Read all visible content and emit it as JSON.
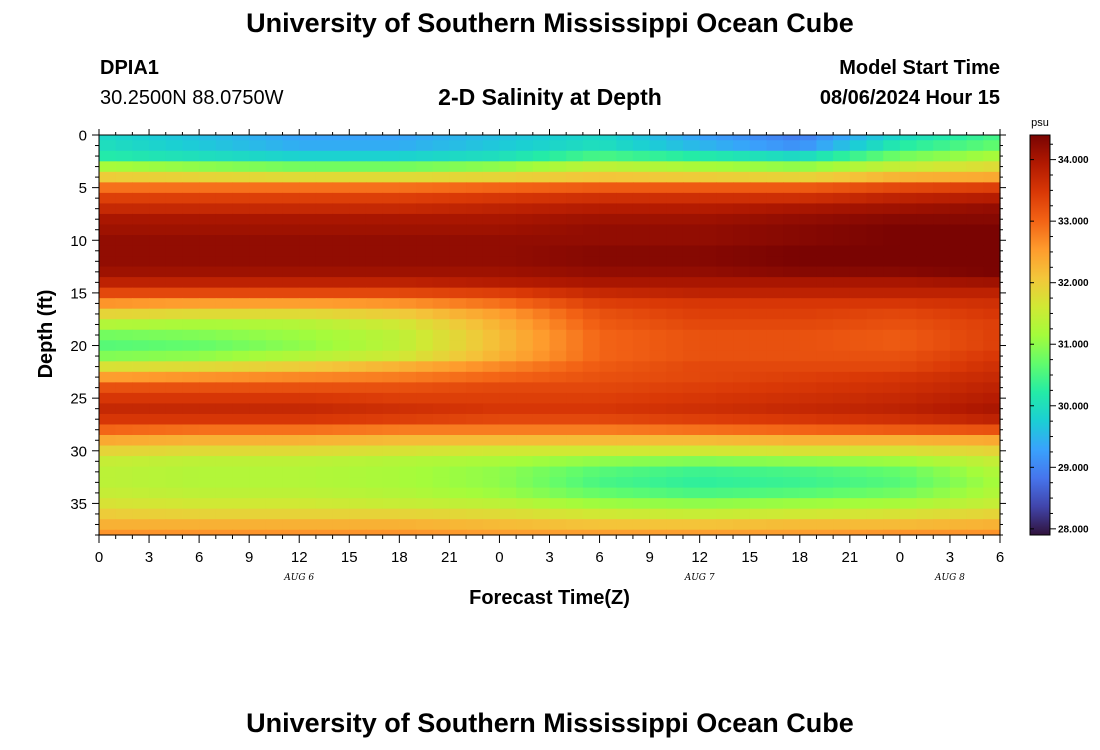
{
  "header": {
    "title": "University of Southern Mississippi Ocean Cube",
    "station": "DPIA1",
    "coords": "30.2500N  88.0750W",
    "subtitle": "2-D Salinity at Depth",
    "model_start_label": "Model Start Time",
    "model_start_value": "08/06/2024 Hour 15"
  },
  "footer": {
    "title": "University of Southern Mississippi Ocean Cube"
  },
  "chart_data": {
    "type": "heatmap",
    "title": "2-D Salinity at Depth",
    "xlabel": "Forecast Time(Z)",
    "ylabel": "Depth (ft)",
    "x_tick_labels": [
      "0",
      "3",
      "6",
      "9",
      "12",
      "15",
      "18",
      "21",
      "0",
      "3",
      "6",
      "9",
      "12",
      "15",
      "18",
      "21",
      "0",
      "3",
      "6"
    ],
    "x_hours": [
      0,
      54
    ],
    "date_labels": [
      {
        "label": "AUG 6",
        "hour": 12
      },
      {
        "label": "AUG 7",
        "hour": 36
      },
      {
        "label": "AUG 8",
        "hour": 51
      }
    ],
    "y_ticks": [
      0,
      5,
      10,
      15,
      20,
      25,
      30,
      35
    ],
    "y_tick_labels": [
      "0",
      "5",
      "10",
      "15",
      "20",
      "25",
      "30",
      "35"
    ],
    "ylim": [
      0,
      38
    ],
    "y_reversed": true,
    "colorbar": {
      "unit": "psu",
      "range": [
        27.9,
        34.4
      ],
      "ticks": [
        28,
        29,
        30,
        31,
        32,
        33,
        34
      ],
      "tick_labels": [
        "28.000",
        "29.000",
        "30.000",
        "31.000",
        "32.000",
        "33.000",
        "34.000"
      ]
    },
    "colormap": [
      "#30123b",
      "#4145ab",
      "#4675ed",
      "#39a2fc",
      "#1bcfd4",
      "#24eca6",
      "#61fc6c",
      "#a4fc3b",
      "#d1e834",
      "#f3c63a",
      "#fe9b2d",
      "#f36315",
      "#d93806",
      "#b11901",
      "#7a0402"
    ],
    "depth_ft": [
      0,
      1,
      2,
      3,
      4,
      5,
      6,
      7,
      8,
      9,
      10,
      11,
      12,
      13,
      14,
      15,
      16,
      17,
      18,
      19,
      20,
      21,
      22,
      23,
      24,
      25,
      26,
      27,
      28,
      29,
      30,
      31,
      32,
      33,
      34,
      35,
      36,
      37,
      38
    ],
    "time_hours": [
      0,
      6,
      12,
      18,
      24,
      30,
      36,
      42,
      48,
      54
    ],
    "salinity_psu": [
      [
        29.9,
        29.6,
        29.3,
        29.3,
        29.6,
        29.9,
        29.3,
        28.9,
        29.9,
        30.5
      ],
      [
        30.0,
        29.7,
        29.4,
        29.4,
        29.7,
        30.0,
        29.5,
        29.1,
        30.2,
        30.7
      ],
      [
        30.2,
        30.0,
        29.8,
        29.8,
        30.0,
        30.5,
        30.2,
        29.9,
        30.8,
        31.2
      ],
      [
        31.2,
        31.0,
        30.8,
        30.8,
        31.0,
        31.4,
        31.2,
        31.0,
        31.5,
        31.8
      ],
      [
        32.0,
        31.9,
        31.8,
        31.8,
        31.9,
        32.1,
        32.0,
        31.9,
        32.3,
        32.4
      ],
      [
        32.9,
        32.9,
        32.9,
        32.9,
        33.0,
        33.1,
        33.1,
        33.1,
        33.3,
        33.4
      ],
      [
        33.4,
        33.4,
        33.4,
        33.4,
        33.5,
        33.6,
        33.6,
        33.6,
        33.8,
        33.9
      ],
      [
        33.7,
        33.7,
        33.7,
        33.7,
        33.8,
        33.9,
        33.9,
        34.0,
        34.1,
        34.2
      ],
      [
        34.0,
        34.0,
        34.0,
        34.0,
        34.0,
        34.1,
        34.1,
        34.2,
        34.3,
        34.3
      ],
      [
        34.1,
        34.1,
        34.1,
        34.1,
        34.1,
        34.2,
        34.2,
        34.3,
        34.4,
        34.4
      ],
      [
        34.2,
        34.2,
        34.2,
        34.2,
        34.2,
        34.2,
        34.2,
        34.3,
        34.4,
        34.5
      ],
      [
        34.2,
        34.2,
        34.2,
        34.2,
        34.2,
        34.3,
        34.3,
        34.4,
        34.5,
        34.6
      ],
      [
        34.2,
        34.2,
        34.2,
        34.2,
        34.2,
        34.3,
        34.3,
        34.4,
        34.5,
        34.6
      ],
      [
        34.1,
        34.1,
        34.1,
        34.1,
        34.1,
        34.2,
        34.2,
        34.3,
        34.3,
        34.4
      ],
      [
        33.8,
        33.8,
        33.8,
        33.8,
        33.9,
        34.0,
        34.0,
        34.0,
        34.0,
        34.1
      ],
      [
        33.3,
        33.3,
        33.3,
        33.3,
        33.4,
        33.7,
        33.8,
        33.8,
        33.8,
        33.8
      ],
      [
        32.6,
        32.5,
        32.5,
        32.6,
        32.9,
        33.4,
        33.5,
        33.5,
        33.5,
        33.6
      ],
      [
        31.9,
        31.8,
        31.8,
        32.0,
        32.5,
        33.2,
        33.4,
        33.4,
        33.3,
        33.5
      ],
      [
        31.3,
        31.2,
        31.3,
        31.6,
        32.3,
        33.1,
        33.3,
        33.3,
        33.2,
        33.4
      ],
      [
        30.8,
        30.9,
        31.1,
        31.4,
        32.2,
        33.0,
        33.2,
        33.2,
        33.1,
        33.4
      ],
      [
        30.6,
        30.7,
        31.0,
        31.4,
        32.2,
        33.0,
        33.2,
        33.2,
        33.1,
        33.4
      ],
      [
        30.9,
        31.0,
        31.3,
        31.6,
        32.3,
        33.0,
        33.2,
        33.2,
        33.2,
        33.5
      ],
      [
        31.7,
        31.8,
        32.0,
        32.3,
        32.7,
        33.1,
        33.3,
        33.3,
        33.3,
        33.6
      ],
      [
        32.5,
        32.6,
        32.7,
        32.8,
        33.0,
        33.2,
        33.3,
        33.4,
        33.5,
        33.7
      ],
      [
        33.2,
        33.2,
        33.2,
        33.2,
        33.3,
        33.3,
        33.4,
        33.5,
        33.6,
        33.8
      ],
      [
        33.5,
        33.5,
        33.5,
        33.4,
        33.4,
        33.4,
        33.5,
        33.6,
        33.7,
        33.9
      ],
      [
        33.7,
        33.7,
        33.7,
        33.6,
        33.5,
        33.5,
        33.6,
        33.7,
        33.8,
        34.0
      ],
      [
        33.5,
        33.5,
        33.5,
        33.4,
        33.3,
        33.3,
        33.4,
        33.5,
        33.6,
        33.8
      ],
      [
        33.0,
        32.9,
        32.9,
        32.8,
        32.8,
        32.8,
        32.9,
        33.0,
        33.1,
        33.2
      ],
      [
        32.4,
        32.3,
        32.3,
        32.2,
        32.2,
        32.2,
        32.2,
        32.3,
        32.3,
        32.4
      ],
      [
        31.9,
        31.8,
        31.8,
        31.7,
        31.6,
        31.6,
        31.6,
        31.7,
        31.7,
        31.9
      ],
      [
        31.5,
        31.4,
        31.4,
        31.3,
        31.2,
        31.0,
        30.9,
        31.0,
        31.1,
        31.5
      ],
      [
        31.4,
        31.3,
        31.3,
        31.2,
        31.0,
        30.6,
        30.4,
        30.5,
        30.7,
        31.3
      ],
      [
        31.4,
        31.3,
        31.3,
        31.2,
        31.0,
        30.5,
        30.3,
        30.4,
        30.6,
        31.2
      ],
      [
        31.5,
        31.4,
        31.4,
        31.3,
        31.1,
        30.7,
        30.5,
        30.6,
        30.8,
        31.3
      ],
      [
        31.7,
        31.6,
        31.6,
        31.5,
        31.4,
        31.1,
        31.0,
        31.1,
        31.2,
        31.5
      ],
      [
        32.0,
        31.9,
        31.9,
        31.9,
        31.8,
        31.6,
        31.5,
        31.6,
        31.7,
        31.9
      ],
      [
        32.3,
        32.3,
        32.3,
        32.3,
        32.2,
        32.1,
        32.1,
        32.2,
        32.2,
        32.3
      ],
      [
        32.6,
        32.6,
        32.6,
        32.6,
        32.5,
        32.5,
        32.5,
        32.5,
        32.6,
        32.6
      ]
    ]
  }
}
